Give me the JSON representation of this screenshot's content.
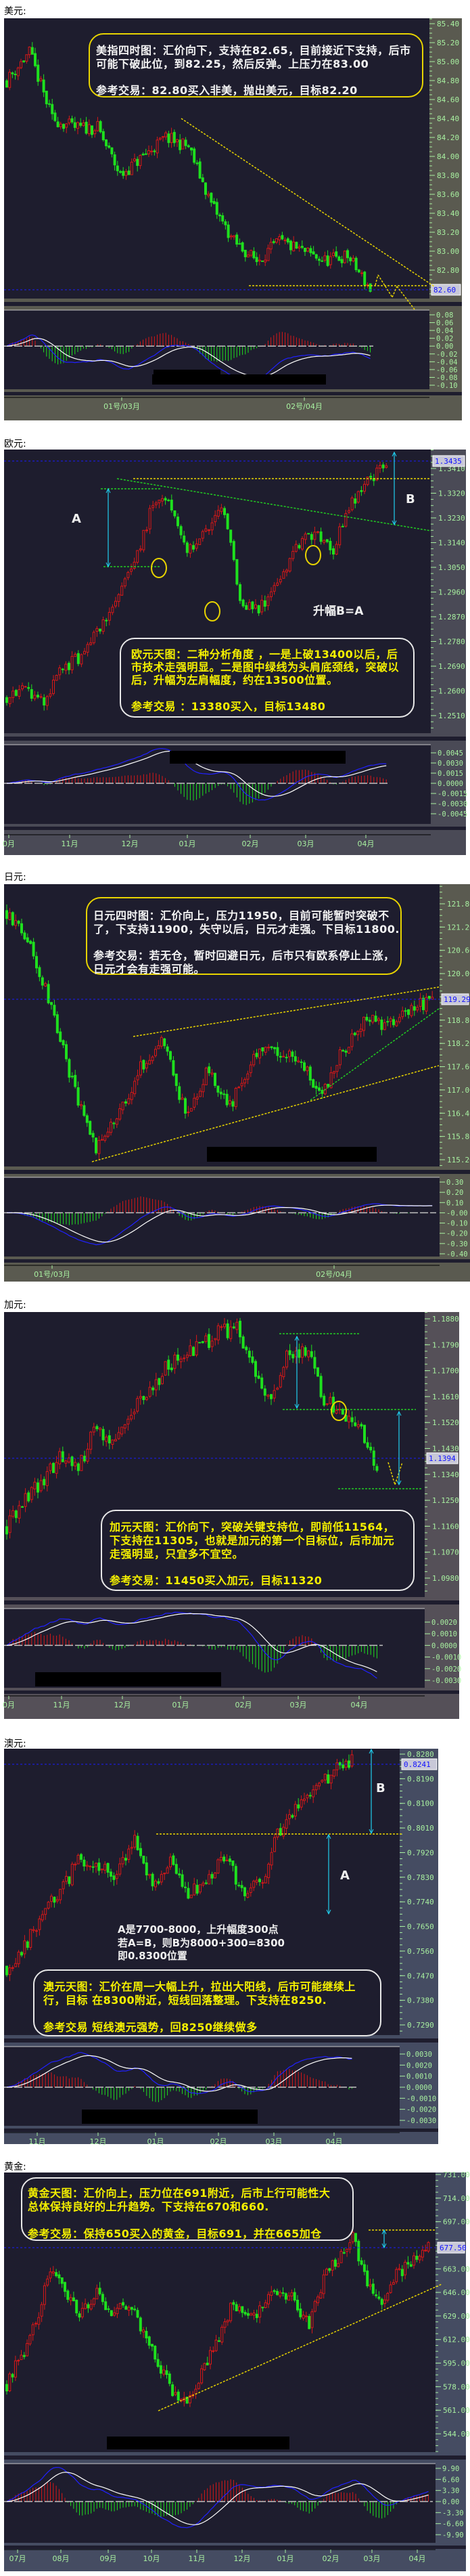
{
  "sections": [
    {
      "title": "美元:",
      "box_lines": [
        "美指四时图：汇价向下，支持在82.65，目前接近下支持，后市",
        "可能下破此位，到82.25，然后反弹。上压力在83.00",
        "参考交易：82.80买入非美，抛出美元，目标82.20"
      ]
    },
    {
      "title": "欧元:",
      "box_lines": [
        "欧元天图：二种分析角度 ，一是上破13400以后，后",
        "市技术走强明显。二是图中绿线为头肩底颈线，突破以",
        "后，升幅为左肩幅度，约在13500位置。",
        "参考交易 ：13380买入，目标13480"
      ],
      "labels": {
        "a": "A",
        "b": "B",
        "rise": "升幅B=A"
      }
    },
    {
      "title": "日元:",
      "box_lines": [
        "日元四时图：汇价向上，压力11950，目前可能暂时突破不",
        "了，下支持11900，失守以后，日元才走强。下目标11800.",
        "参考交易：若无仓，暂时回避日元，后市只有欧系停止上涨，",
        "日元才会有走强可能。"
      ]
    },
    {
      "title": "加元:",
      "box_lines": [
        "加元天图：汇价向下，突破关键支持位，即前低11564，",
        "下支持在11305，也就是加元的第一个目标位，后市加元",
        "走强明显，只宜多不宜空。",
        "参考交易：11450买入加元，目标11320"
      ]
    },
    {
      "title": "澳元:",
      "box_lines": [
        "澳元天图：汇价在周一大幅上升，拉出大阳线，后市可能继续上",
        "行，目标 在8300附近，短线回落整理。下支持在8250.",
        "参考交易 短线澳元强势，回8250继续做多"
      ],
      "labels": {
        "a": "A",
        "b": "B"
      },
      "note_lines": [
        "A是7700-8000，上升幅度300点",
        "若A=B，则B为8000+300=8300",
        "即0.8300位置"
      ]
    },
    {
      "title": "黄金:",
      "box_lines": [
        "黄金天图：汇价向上，压力位在691附近，后市上行可能性大",
        "总体保持良好的上升趋势。下支持在670和660.",
        "参考交易：保持650买入的黄金，目标691，并在665加仓"
      ]
    }
  ],
  "colors": {
    "chart_bg": "#1e1d2e",
    "up_candle": "#d81818",
    "down_candle": "#1ee01e",
    "tick_text": "#a8f0a0",
    "current_price_line": "#1a1aff",
    "dif_line": "#2020ff",
    "dea_line": "#ffffff",
    "trend_yellow": "#e8d400",
    "trend_green": "#22cc22",
    "arrow_cyan": "#20d0f0"
  },
  "chart_data": [
    {
      "type": "candlestick",
      "instrument_title": "美元:",
      "timeframe": "4H",
      "approx_close_path": [
        84.8,
        85.1,
        84.4,
        84.3,
        84.3,
        83.8,
        84.0,
        84.2,
        84.1,
        83.5,
        83.1,
        82.9,
        83.1,
        83.0,
        82.9,
        82.95,
        82.6
      ],
      "current_price": "82.60",
      "y_ticks": [
        "85.40",
        "85.20",
        "85.00",
        "84.80",
        "84.60",
        "84.40",
        "84.20",
        "84.00",
        "83.80",
        "83.60",
        "83.40",
        "83.20",
        "83.00",
        "82.80"
      ],
      "macd_ticks": [
        "0.08",
        "0.06",
        "0.04",
        "0.02",
        "0.00",
        "-0.02",
        "-0.04",
        "-0.06",
        "-0.08",
        "-0.10"
      ],
      "x_ticks": [
        "01号/03月",
        "02号/04月"
      ],
      "grid": false
    },
    {
      "type": "candlestick",
      "instrument_title": "欧元:",
      "timeframe": "1D",
      "approx_close_path": [
        1.258,
        1.262,
        1.255,
        1.268,
        1.272,
        1.282,
        1.292,
        1.305,
        1.326,
        1.33,
        1.31,
        1.318,
        1.326,
        1.292,
        1.29,
        1.3,
        1.312,
        1.318,
        1.31,
        1.328,
        1.336,
        1.343
      ],
      "current_price": "1.3435",
      "y_ticks": [
        "1.3410",
        "1.3320",
        "1.3230",
        "1.3140",
        "1.3050",
        "1.2960",
        "1.2870",
        "1.2780",
        "1.2690",
        "1.2600",
        "1.2510"
      ],
      "macd_ticks": [
        "0.0045",
        "0.0030",
        "0.0015",
        "0.0000",
        "-0.0015",
        "-0.0030",
        "-0.0045"
      ],
      "x_ticks": [
        "0月",
        "11月",
        "12月",
        "01月",
        "02月",
        "03月",
        "04月"
      ],
      "grid": false
    },
    {
      "type": "candlestick",
      "instrument_title": "日元:",
      "timeframe": "4H",
      "approx_close_path": [
        121.6,
        120.8,
        119.2,
        117.0,
        115.4,
        116.4,
        117.6,
        118.3,
        116.3,
        117.5,
        116.6,
        117.9,
        118.0,
        117.9,
        116.8,
        118.0,
        118.9,
        118.6,
        119.1,
        119.3
      ],
      "current_price": "119.29",
      "y_ticks": [
        "121.80",
        "121.20",
        "120.60",
        "120.00",
        "118.80",
        "118.20",
        "117.60",
        "117.00",
        "116.40",
        "115.80",
        "115.20"
      ],
      "macd_ticks": [
        "0.30",
        "0.20",
        "0.10",
        "-0.00",
        "-0.10",
        "-0.20",
        "-0.30",
        "-0.40"
      ],
      "x_ticks": [
        "01号/03月",
        "02号/04月"
      ],
      "grid": false
    },
    {
      "type": "candlestick",
      "instrument_title": "加元:",
      "timeframe": "1D",
      "approx_close_path": [
        1.116,
        1.126,
        1.131,
        1.14,
        1.135,
        1.15,
        1.146,
        1.156,
        1.162,
        1.171,
        1.176,
        1.178,
        1.183,
        1.185,
        1.17,
        1.16,
        1.176,
        1.178,
        1.16,
        1.156,
        1.15,
        1.136
      ],
      "current_price": "1.1394",
      "y_ticks": [
        "1.1880",
        "1.1790",
        "1.1700",
        "1.1610",
        "1.1520",
        "1.1430",
        "1.1340",
        "1.1250",
        "1.1160",
        "1.1070",
        "1.0980"
      ],
      "macd_ticks": [
        "0.0020",
        "0.0010",
        "0.0000",
        "-0.0010",
        "-0.0020",
        "-0.0030"
      ],
      "x_ticks": [
        "0月",
        "11月",
        "12月",
        "01月",
        "02月",
        "03月",
        "04月"
      ],
      "grid": false
    },
    {
      "type": "candlestick",
      "instrument_title": "澳元:",
      "timeframe": "1D",
      "approx_close_path": [
        0.75,
        0.758,
        0.77,
        0.778,
        0.79,
        0.786,
        0.784,
        0.797,
        0.78,
        0.788,
        0.776,
        0.782,
        0.79,
        0.778,
        0.781,
        0.8,
        0.81,
        0.815,
        0.822,
        0.826
      ],
      "current_price": "0.8241",
      "y_ticks": [
        "0.8280",
        "0.8190",
        "0.8100",
        "0.8010",
        "0.7920",
        "0.7830",
        "0.7740",
        "0.7650",
        "0.7560",
        "0.7470",
        "0.7380",
        "0.7290"
      ],
      "macd_ticks": [
        "0.0030",
        "0.0020",
        "0.0010",
        "0.0000",
        "-0.0010",
        "-0.0020",
        "-0.0030"
      ],
      "x_ticks": [
        "11月",
        "12月",
        "01月",
        "02月",
        "03月",
        "04月"
      ],
      "grid": false
    },
    {
      "type": "candlestick",
      "instrument_title": "黄金:",
      "timeframe": "1D",
      "approx_close_path": [
        580,
        600,
        625,
        668,
        640,
        630,
        645,
        625,
        640,
        618,
        595,
        575,
        563,
        590,
        612,
        640,
        625,
        635,
        650,
        640,
        622,
        655,
        670,
        686,
        650,
        640,
        660,
        668,
        678
      ],
      "current_price": "677.50",
      "y_ticks": [
        "731.00",
        "714.00",
        "697.00",
        "663.00",
        "646.00",
        "629.00",
        "612.00",
        "595.00",
        "578.00",
        "561.00",
        "544.00"
      ],
      "macd_ticks": [
        "9.90",
        "6.60",
        "3.30",
        "0.00",
        "-3.30",
        "-6.60",
        "-9.90"
      ],
      "x_ticks": [
        "07月",
        "08月",
        "09月",
        "10月",
        "11月",
        "12月",
        "01月",
        "02月",
        "03月",
        "04月"
      ],
      "grid": false
    }
  ]
}
